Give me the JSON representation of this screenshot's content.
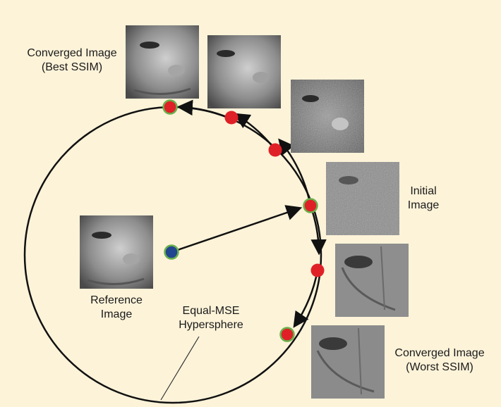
{
  "labels": {
    "converged_best_line1": "Converged Image",
    "converged_best_line2": "(Best SSIM)",
    "initial_line1": "Initial",
    "initial_line2": "Image",
    "reference_line1": "Reference",
    "reference_line2": "Image",
    "hypersphere_line1": "Equal-MSE",
    "hypersphere_line2": "Hypersphere",
    "converged_worst_line1": "Converged Image",
    "converged_worst_line2": "(Worst SSIM)"
  },
  "colors": {
    "background": "#fdf3d9",
    "circle": "#111111",
    "red_dot": "#e02027",
    "blue_dot": "#22458f",
    "green_ring": "#6ab04c"
  },
  "images": {
    "converged_best": "face-thumbnail",
    "ssim_step_1": "face-thumbnail-salt-noise",
    "ssim_step_2": "face-thumbnail-noisy",
    "initial": "face-thumbnail-gaussian-noise",
    "worst_step": "face-thumbnail-distorted",
    "converged_worst": "face-thumbnail-worst",
    "reference": "face-thumbnail"
  }
}
